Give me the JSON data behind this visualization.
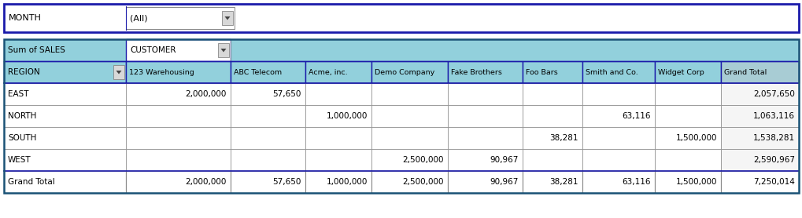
{
  "filter_row": {
    "label": "MONTH",
    "value": "(All)"
  },
  "col_headers": [
    "123 Warehousing",
    "ABC Telecom",
    "Acme, inc.",
    "Demo Company",
    "Fake Brothers",
    "Foo Bars",
    "Smith and Co.",
    "Widget Corp",
    "Grand Total"
  ],
  "row_labels": [
    "EAST",
    "NORTH",
    "SOUTH",
    "WEST"
  ],
  "data": {
    "EAST": [
      "2,000,000",
      "57,650",
      "",
      "",
      "",
      "",
      "",
      "",
      "2,057,650"
    ],
    "NORTH": [
      "",
      "",
      "1,000,000",
      "",
      "",
      "",
      "63,116",
      "",
      "1,063,116"
    ],
    "SOUTH": [
      "",
      "",
      "",
      "",
      "",
      "38,281",
      "",
      "1,500,000",
      "1,538,281"
    ],
    "WEST": [
      "",
      "",
      "",
      "2,500,000",
      "90,967",
      "",
      "",
      "",
      "2,590,967"
    ],
    "Grand Total": [
      "2,000,000",
      "57,650",
      "1,000,000",
      "2,500,000",
      "90,967",
      "38,281",
      "63,116",
      "1,500,000",
      "7,250,014"
    ]
  },
  "colors": {
    "white": "#ffffff",
    "filter_bg": "#ffffff",
    "filter_border": "#1a1aaa",
    "teal_light": "#92d0dc",
    "teal_header": "#7ec8d8",
    "cell_border": "#888888",
    "dark_border": "#1a1aaa",
    "outer_table_border": "#1a5276",
    "dropdown_bg": "#d8d8d8",
    "dropdown_border": "#888888"
  },
  "figsize": [
    10.2,
    2.78
  ],
  "dpi": 100
}
